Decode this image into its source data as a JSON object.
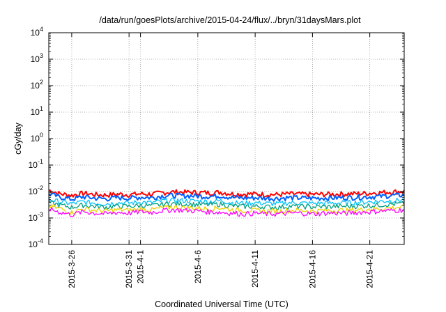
{
  "chart_data": {
    "type": "line",
    "title": "/data/run/goesPlots/archive/2015-04-24/flux/../bryn/31daysMars.plot",
    "xlabel": "Coordinated Universal Time (UTC)",
    "ylabel": "cGy/day",
    "y_scale": "log",
    "ylim": [
      0.0001,
      10000
    ],
    "y_ticks": [
      {
        "value": 10000,
        "base": "10",
        "exp": "4"
      },
      {
        "value": 1000,
        "base": "10",
        "exp": "3"
      },
      {
        "value": 100,
        "base": "10",
        "exp": "2"
      },
      {
        "value": 10,
        "base": "10",
        "exp": "1"
      },
      {
        "value": 1,
        "base": "10",
        "exp": "0"
      },
      {
        "value": 0.1,
        "base": "10",
        "exp": "-1"
      },
      {
        "value": 0.01,
        "base": "10",
        "exp": "-2"
      },
      {
        "value": 0.001,
        "base": "10",
        "exp": "-3"
      },
      {
        "value": 0.0001,
        "base": "10",
        "exp": "-4"
      }
    ],
    "xlim": [
      "2015-03-24",
      "2015-04-24"
    ],
    "x_ticks": [
      {
        "date": "2015-03-26",
        "label": "2015-3-26"
      },
      {
        "date": "2015-03-31",
        "label": "2015-3-31"
      },
      {
        "date": "2015-04-01",
        "label": "2015-4-1"
      },
      {
        "date": "2015-04-06",
        "label": "2015-4-6"
      },
      {
        "date": "2015-04-11",
        "label": "2015-4-11"
      },
      {
        "date": "2015-04-16",
        "label": "2015-4-16"
      },
      {
        "date": "2015-04-21",
        "label": "2015-4-21"
      }
    ],
    "grid": true,
    "x": [
      "2015-03-24",
      "2015-03-25",
      "2015-03-26",
      "2015-03-27",
      "2015-03-28",
      "2015-03-29",
      "2015-03-30",
      "2015-03-31",
      "2015-04-01",
      "2015-04-02",
      "2015-04-03",
      "2015-04-04",
      "2015-04-05",
      "2015-04-06",
      "2015-04-07",
      "2015-04-08",
      "2015-04-09",
      "2015-04-10",
      "2015-04-11",
      "2015-04-12",
      "2015-04-13",
      "2015-04-14",
      "2015-04-15",
      "2015-04-16",
      "2015-04-17",
      "2015-04-18",
      "2015-04-19",
      "2015-04-20",
      "2015-04-21",
      "2015-04-22",
      "2015-04-23",
      "2015-04-24"
    ],
    "series": [
      {
        "color": "#ff0000",
        "values": [
          0.011,
          0.008,
          0.007,
          0.0085,
          0.0075,
          0.0072,
          0.0078,
          0.0075,
          0.008,
          0.0078,
          0.009,
          0.0095,
          0.0092,
          0.009,
          0.0088,
          0.0092,
          0.008,
          0.0078,
          0.0079,
          0.0076,
          0.0075,
          0.008,
          0.0078,
          0.0076,
          0.0077,
          0.0078,
          0.008,
          0.0082,
          0.0085,
          0.009,
          0.0095,
          0.01
        ]
      },
      {
        "color": "#0060ff",
        "values": [
          0.008,
          0.006,
          0.005,
          0.0062,
          0.0055,
          0.0052,
          0.0058,
          0.0055,
          0.006,
          0.0058,
          0.0068,
          0.007,
          0.0068,
          0.0066,
          0.0064,
          0.0068,
          0.0058,
          0.0056,
          0.0057,
          0.0055,
          0.0054,
          0.0058,
          0.0056,
          0.0055,
          0.0056,
          0.0057,
          0.0058,
          0.006,
          0.0062,
          0.0065,
          0.007,
          0.0072
        ]
      },
      {
        "color": "#00c0ff",
        "values": [
          0.005,
          0.004,
          0.0034,
          0.004,
          0.0036,
          0.0034,
          0.0037,
          0.0036,
          0.0039,
          0.0037,
          0.0044,
          0.0046,
          0.0044,
          0.0043,
          0.0041,
          0.0044,
          0.0037,
          0.0036,
          0.0037,
          0.0035,
          0.0034,
          0.0037,
          0.0036,
          0.0035,
          0.0036,
          0.0036,
          0.0037,
          0.0038,
          0.004,
          0.0042,
          0.0045,
          0.0047
        ]
      },
      {
        "color": "#00a080",
        "values": [
          0.0038,
          0.003,
          0.0025,
          0.003,
          0.0027,
          0.0025,
          0.0028,
          0.0027,
          0.0029,
          0.0028,
          0.0033,
          0.0034,
          0.0033,
          0.0032,
          0.0031,
          0.0033,
          0.0028,
          0.0027,
          0.0027,
          0.0026,
          0.0025,
          0.0027,
          0.0027,
          0.0026,
          0.0026,
          0.0027,
          0.0027,
          0.0028,
          0.0029,
          0.0031,
          0.0033,
          0.0034
        ]
      },
      {
        "color": "#e8d000",
        "values": [
          0.0028,
          0.0022,
          0.0016,
          0.0022,
          0.0019,
          0.0018,
          0.002,
          0.0019,
          0.0021,
          0.002,
          0.0024,
          0.0025,
          0.0024,
          0.0023,
          0.0022,
          0.0024,
          0.002,
          0.0019,
          0.0019,
          0.0018,
          0.0018,
          0.0019,
          0.0019,
          0.0018,
          0.0019,
          0.0019,
          0.0019,
          0.002,
          0.0021,
          0.0022,
          0.0024,
          0.0025
        ]
      },
      {
        "color": "#ff00ff",
        "values": [
          0.0022,
          0.0016,
          0.0013,
          0.0017,
          0.0015,
          0.0014,
          0.0016,
          0.0015,
          0.0017,
          0.0016,
          0.0019,
          0.002,
          0.0019,
          0.0018,
          0.0017,
          0.0016,
          0.0015,
          0.0014,
          0.0015,
          0.0014,
          0.0014,
          0.0015,
          0.0015,
          0.0014,
          0.0015,
          0.0015,
          0.0015,
          0.0016,
          0.0017,
          0.0018,
          0.0019,
          0.002
        ]
      }
    ]
  }
}
